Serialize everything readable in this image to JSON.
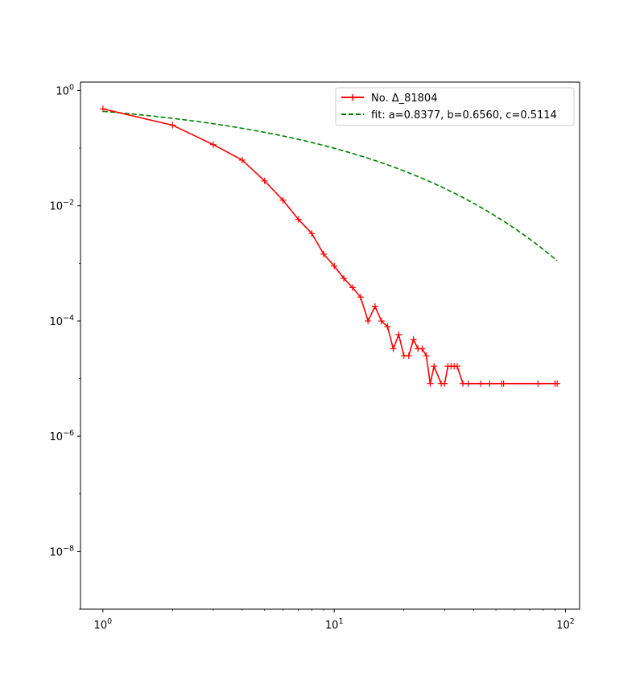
{
  "colors": {
    "observed": "#ff0000",
    "fit": "#008000",
    "axes": "#000000",
    "background": "#ffffff",
    "legend_border": "#cccccc"
  },
  "chart_data": {
    "type": "line",
    "title": "",
    "xlabel": "",
    "ylabel": "",
    "xscale": "log",
    "yscale": "log",
    "xlim": [
      0.8,
      115
    ],
    "ylim": [
      1e-09,
      1.4
    ],
    "grid": false,
    "legend_position": "top-right",
    "xticks": [
      {
        "value": 1,
        "mantissa": "10",
        "exp": "0"
      },
      {
        "value": 10,
        "mantissa": "10",
        "exp": "1"
      },
      {
        "value": 100,
        "mantissa": "10",
        "exp": "2"
      }
    ],
    "yticks": [
      {
        "value": 1,
        "mantissa": "10",
        "exp": "0"
      },
      {
        "value": 0.01,
        "mantissa": "10",
        "exp": "−2"
      },
      {
        "value": 0.0001,
        "mantissa": "10",
        "exp": "−4"
      },
      {
        "value": 1e-06,
        "mantissa": "10",
        "exp": "−6"
      },
      {
        "value": 1e-08,
        "mantissa": "10",
        "exp": "−8"
      }
    ],
    "series": [
      {
        "name": "No. Δ_81804",
        "style": "solid",
        "marker": "+",
        "color": "#ff0000",
        "points": [
          [
            1,
            0.48
          ],
          [
            2,
            0.25
          ],
          [
            3,
            0.115
          ],
          [
            4,
            0.062
          ],
          [
            5,
            0.027
          ],
          [
            6,
            0.0125
          ],
          [
            7,
            0.0058
          ],
          [
            8,
            0.0033
          ],
          [
            9,
            0.00145
          ],
          [
            10,
            0.0009
          ],
          [
            11,
            0.00055
          ],
          [
            12,
            0.00038
          ],
          [
            13,
            0.00026
          ],
          [
            14,
            0.0001
          ],
          [
            15,
            0.00018
          ],
          [
            16,
            0.0001
          ],
          [
            17,
            8e-05
          ],
          [
            18,
            3.3e-05
          ],
          [
            19,
            5.8e-05
          ],
          [
            20,
            2.5e-05
          ],
          [
            21,
            2.5e-05
          ],
          [
            22,
            4.8e-05
          ],
          [
            23,
            3.3e-05
          ],
          [
            24,
            3.3e-05
          ],
          [
            25,
            2.5e-05
          ],
          [
            26,
            8.2e-06
          ],
          [
            27,
            1.64e-05
          ],
          [
            29,
            8.2e-06
          ],
          [
            30,
            8.2e-06
          ],
          [
            31,
            1.64e-05
          ],
          [
            32,
            1.64e-05
          ],
          [
            33,
            1.64e-05
          ],
          [
            34,
            1.64e-05
          ],
          [
            36,
            8.2e-06
          ],
          [
            38,
            8.2e-06
          ],
          [
            43,
            8.2e-06
          ],
          [
            47,
            8.2e-06
          ],
          [
            53,
            8.2e-06
          ],
          [
            54,
            8.2e-06
          ],
          [
            76,
            8.2e-06
          ],
          [
            90,
            8.2e-06
          ],
          [
            92,
            8.2e-06
          ]
        ]
      },
      {
        "name": "fit: a=0.8377, b=0.6560, c=0.5114",
        "style": "dashed",
        "color": "#008000",
        "model": "a*exp(-b*x^c)",
        "params": {
          "a": 0.8377,
          "b": 0.656,
          "c": 0.5114
        },
        "x_range": [
          1,
          92
        ]
      }
    ]
  }
}
